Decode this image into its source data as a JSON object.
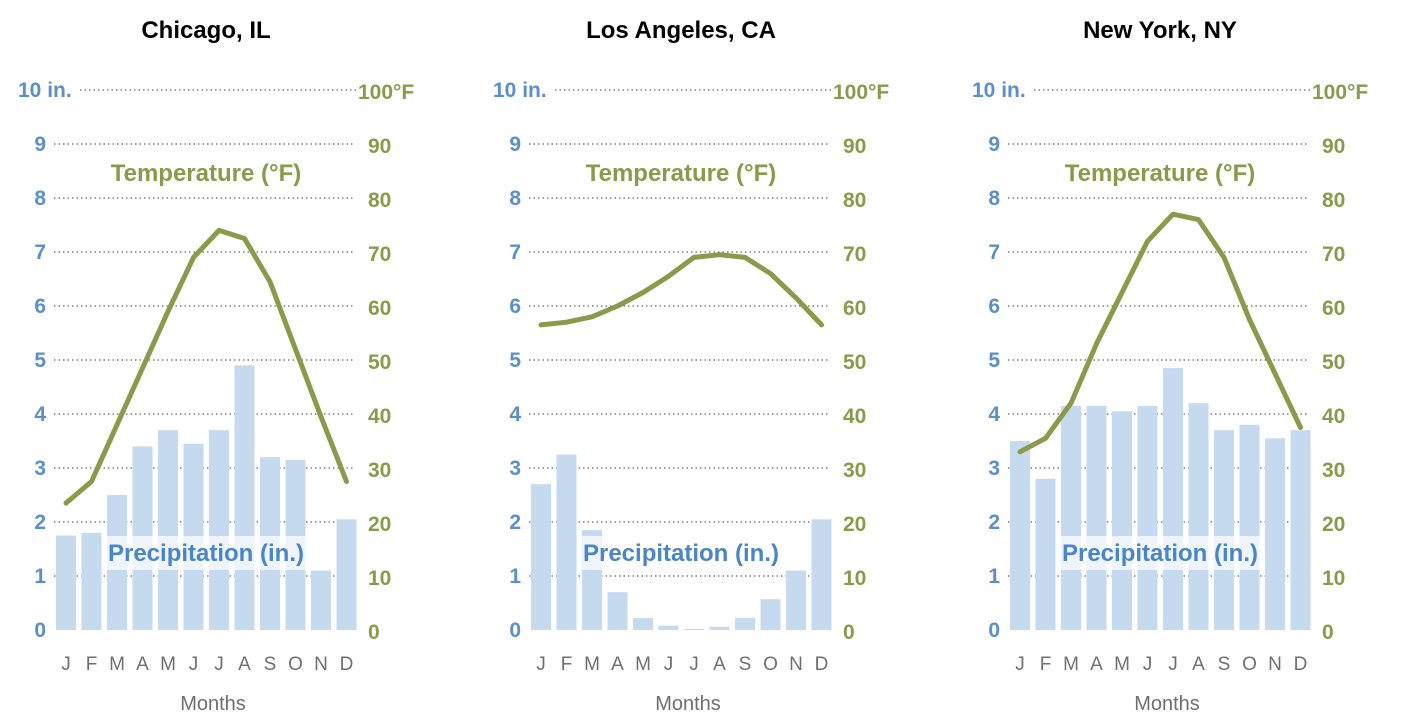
{
  "chart_data": [
    {
      "type": "bar+line",
      "title": "Chicago, IL",
      "categories": [
        "J",
        "F",
        "M",
        "A",
        "M",
        "J",
        "J",
        "A",
        "S",
        "O",
        "N",
        "D"
      ],
      "xlabel": "Months",
      "left_ticks": [
        "10 in.",
        "9",
        "8",
        "7",
        "6",
        "5",
        "4",
        "3",
        "2",
        "1",
        "0"
      ],
      "right_ticks": [
        "100°F",
        "90",
        "80",
        "70",
        "60",
        "50",
        "40",
        "30",
        "20",
        "10",
        "0"
      ],
      "ylim_left": [
        0,
        10
      ],
      "ylim_right": [
        0,
        100
      ],
      "series": [
        {
          "name": "Precipitation (in.)",
          "type": "bar",
          "axis": "left",
          "values": [
            1.75,
            1.8,
            2.5,
            3.4,
            3.7,
            3.45,
            3.7,
            4.9,
            3.2,
            3.15,
            1.1,
            2.05
          ]
        },
        {
          "name": "Temperature (°F)",
          "type": "line",
          "axis": "right",
          "values": [
            23.5,
            27.5,
            38,
            48.5,
            59,
            69,
            74,
            72.5,
            64.5,
            52,
            39.5,
            27.5
          ]
        }
      ]
    },
    {
      "type": "bar+line",
      "title": "Los Angeles, CA",
      "categories": [
        "J",
        "F",
        "M",
        "A",
        "M",
        "J",
        "J",
        "A",
        "S",
        "O",
        "N",
        "D"
      ],
      "xlabel": "Months",
      "left_ticks": [
        "10 in.",
        "9",
        "8",
        "7",
        "6",
        "5",
        "4",
        "3",
        "2",
        "1",
        "0"
      ],
      "right_ticks": [
        "100°F",
        "90",
        "80",
        "70",
        "60",
        "50",
        "40",
        "30",
        "20",
        "10",
        "0"
      ],
      "ylim_left": [
        0,
        10
      ],
      "ylim_right": [
        0,
        100
      ],
      "series": [
        {
          "name": "Precipitation (in.)",
          "type": "bar",
          "axis": "left",
          "values": [
            2.7,
            3.25,
            1.85,
            0.7,
            0.22,
            0.08,
            0.02,
            0.06,
            0.22,
            0.57,
            1.1,
            2.05
          ]
        },
        {
          "name": "Temperature (°F)",
          "type": "line",
          "axis": "right",
          "values": [
            56.5,
            57,
            58,
            60,
            62.5,
            65.5,
            69,
            69.5,
            69,
            66,
            61.5,
            56.5
          ]
        }
      ]
    },
    {
      "type": "bar+line",
      "title": "New York, NY",
      "categories": [
        "J",
        "F",
        "M",
        "A",
        "M",
        "J",
        "J",
        "A",
        "S",
        "O",
        "N",
        "D"
      ],
      "xlabel": "Months",
      "left_ticks": [
        "10 in.",
        "9",
        "8",
        "7",
        "6",
        "5",
        "4",
        "3",
        "2",
        "1",
        "0"
      ],
      "right_ticks": [
        "100°F",
        "90",
        "80",
        "70",
        "60",
        "50",
        "40",
        "30",
        "20",
        "10",
        "0"
      ],
      "ylim_left": [
        0,
        10
      ],
      "ylim_right": [
        0,
        100
      ],
      "series": [
        {
          "name": "Precipitation (in.)",
          "type": "bar",
          "axis": "left",
          "values": [
            3.5,
            2.8,
            4.15,
            4.15,
            4.05,
            4.15,
            4.85,
            4.2,
            3.7,
            3.8,
            3.55,
            3.7
          ]
        },
        {
          "name": "Temperature (°F)",
          "type": "line",
          "axis": "right",
          "values": [
            33,
            35.5,
            42,
            53,
            62.5,
            72,
            77,
            76,
            69,
            57.5,
            47.5,
            37.5
          ]
        }
      ]
    }
  ],
  "colors": {
    "bar": "#c5d9ef",
    "line": "#8a9a4b",
    "left_axis": "#5b8fcb",
    "right_axis": "#8a9a4b",
    "grid": "#666666"
  }
}
